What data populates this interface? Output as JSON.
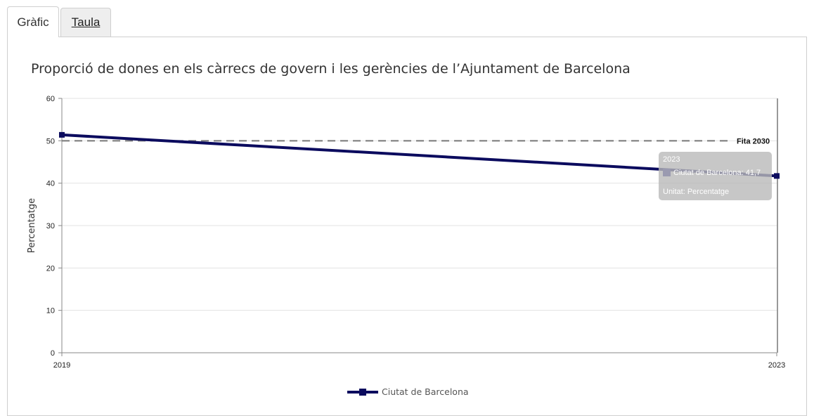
{
  "tabs": [
    {
      "label": "Gràfic",
      "active": true
    },
    {
      "label": "Taula",
      "active": false
    }
  ],
  "chart_data": {
    "type": "line",
    "title": "Proporció de dones en els càrrecs de govern i les gerències de l’Ajuntament de Barcelona",
    "xlabel": "",
    "ylabel": "Percentatge",
    "x": [
      "2019",
      "2023"
    ],
    "ylim": [
      0,
      60
    ],
    "yticks": [
      0,
      10,
      20,
      30,
      40,
      50,
      60
    ],
    "grid": true,
    "legend_position": "bottom",
    "series": [
      {
        "name": "Ciutat de Barcelona",
        "values": [
          51.4,
          41.7
        ],
        "color": "#0b0b5e"
      }
    ],
    "reference_line": {
      "label": "Fita 2030",
      "value": 50,
      "color": "#777777"
    },
    "tooltip": {
      "title": "2023",
      "series_line": "Ciutat de Barcelona: 41,7",
      "unit_line": "Unitat: Percentatge"
    }
  }
}
